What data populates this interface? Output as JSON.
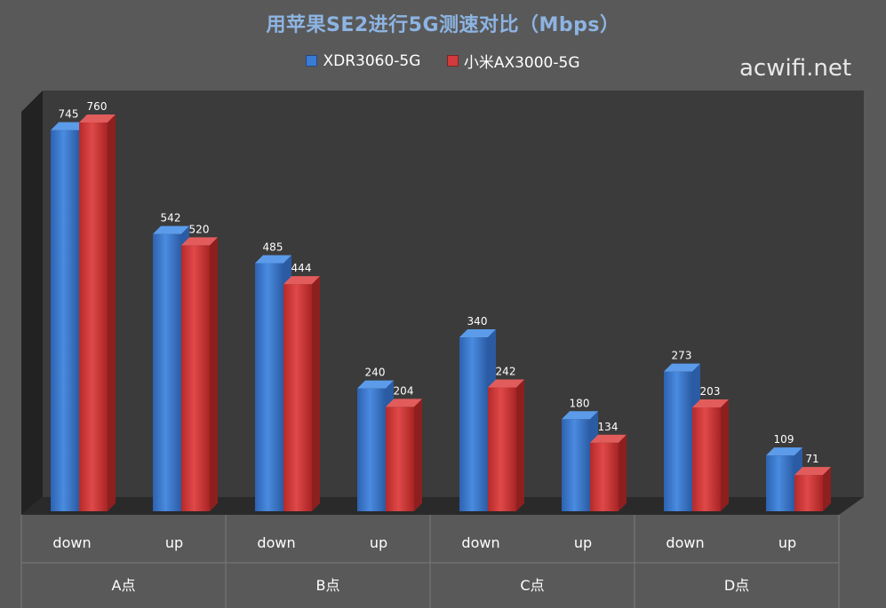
{
  "title": "用苹果SE2进行5G测速对比（Mbps）",
  "watermark": "acwifi.net",
  "chart_data": {
    "type": "bar",
    "title": "用苹果SE2进行5G测速对比（Mbps）",
    "groups": [
      "A点",
      "B点",
      "C点",
      "D点"
    ],
    "categories": [
      "down",
      "up",
      "down",
      "up",
      "down",
      "up",
      "down",
      "up"
    ],
    "series": [
      {
        "name": "XDR3060-5G",
        "color": "#3a7bd5",
        "values": [
          745,
          542,
          485,
          240,
          340,
          180,
          273,
          109
        ]
      },
      {
        "name": "小米AX3000-5G",
        "color": "#d13b3b",
        "values": [
          760,
          520,
          444,
          204,
          242,
          134,
          203,
          71
        ]
      }
    ],
    "ylim": [
      0,
      800
    ],
    "legend": "top",
    "grid": false,
    "style": "3d"
  }
}
